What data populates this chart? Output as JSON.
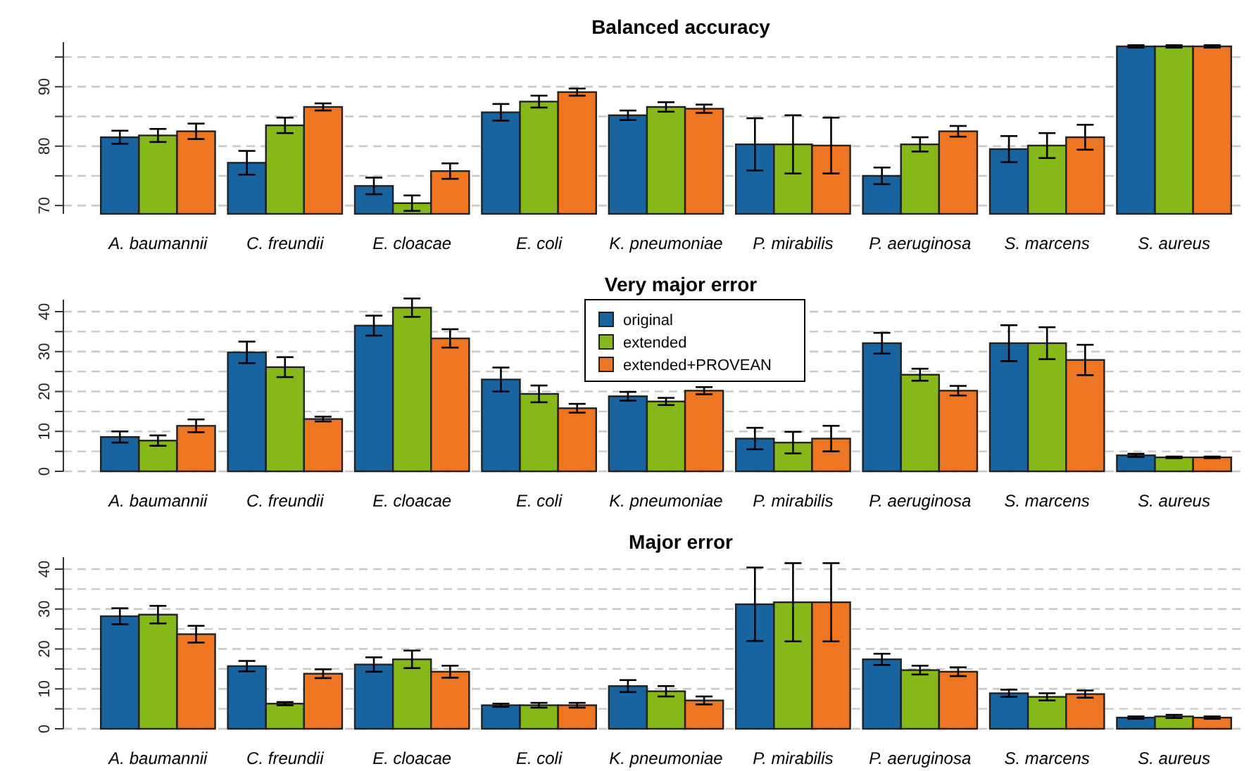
{
  "chart_data": [
    {
      "type": "bar",
      "title": "Balanced accuracy",
      "categories": [
        "A. baumannii",
        "C. freundii",
        "E. cloacae",
        "E. coli",
        "K. pneumoniae",
        "P. mirabilis",
        "P. aeruginosa",
        "S. marcens",
        "S. aureus"
      ],
      "series": [
        {
          "color": "#1764a0",
          "values": [
            81.5,
            77.2,
            73.3,
            85.7,
            85.2,
            80.3,
            75.0,
            79.5,
            96.8
          ],
          "errors": [
            1.1,
            2.0,
            1.4,
            1.4,
            0.8,
            4.4,
            1.4,
            2.2,
            0.2
          ]
        },
        {
          "color": "#86b81a",
          "values": [
            81.8,
            83.5,
            70.4,
            87.5,
            86.6,
            80.3,
            80.3,
            80.1,
            96.8
          ],
          "errors": [
            1.1,
            1.3,
            1.3,
            1.0,
            0.8,
            4.9,
            1.2,
            2.1,
            0.2
          ]
        },
        {
          "color": "#ee7623",
          "values": [
            82.5,
            86.6,
            75.8,
            89.1,
            86.3,
            80.1,
            82.5,
            81.5,
            96.8
          ],
          "errors": [
            1.3,
            0.6,
            1.3,
            0.6,
            0.7,
            4.7,
            0.9,
            2.1,
            0.2
          ]
        }
      ],
      "ylim": [
        68.6,
        97.5
      ],
      "yticks": [
        70,
        {
          "value": 75,
          "label": null
        },
        80,
        {
          "value": 85,
          "label": null
        },
        90,
        {
          "value": 95,
          "label": null
        }
      ],
      "grid": "y"
    },
    {
      "type": "bar",
      "title": "Very major error",
      "categories": [
        "A. baumannii",
        "C. freundii",
        "E. cloacae",
        "E. coli",
        "K. pneumoniae",
        "P. mirabilis",
        "P. aeruginosa",
        "S. marcens",
        "S. aureus"
      ],
      "series": [
        {
          "name": "original",
          "color": "#1764a0",
          "values": [
            8.6,
            29.8,
            36.5,
            23.0,
            18.8,
            8.2,
            32.1,
            32.1,
            4.0
          ],
          "errors": [
            1.4,
            2.7,
            2.5,
            3.0,
            1.1,
            2.7,
            2.6,
            4.5,
            0.4
          ]
        },
        {
          "name": "extended",
          "color": "#86b81a",
          "values": [
            7.7,
            26.1,
            41.0,
            19.4,
            17.5,
            7.2,
            24.2,
            32.1,
            3.5
          ],
          "errors": [
            1.3,
            2.5,
            2.3,
            2.1,
            0.9,
            2.7,
            1.5,
            4.0,
            0.2
          ]
        },
        {
          "name": "extended+PROVEAN",
          "color": "#ee7623",
          "values": [
            11.4,
            13.1,
            33.3,
            15.8,
            20.2,
            8.2,
            20.2,
            27.9,
            3.5
          ],
          "errors": [
            1.6,
            0.6,
            2.3,
            1.1,
            0.9,
            3.2,
            1.2,
            3.8,
            0.2
          ]
        }
      ],
      "ylim": [
        0,
        43
      ],
      "yticks": [
        0,
        {
          "value": 5,
          "label": null
        },
        10,
        {
          "value": 15,
          "label": null
        },
        20,
        {
          "value": 25,
          "label": null
        },
        30,
        {
          "value": 35,
          "label": null
        },
        40
      ],
      "grid": "y",
      "legend": "top"
    },
    {
      "type": "bar",
      "title": "Major error",
      "categories": [
        "A. baumannii",
        "C. freundii",
        "E. cloacae",
        "E. coli",
        "K. pneumoniae",
        "P. mirabilis",
        "P. aeruginosa",
        "S. marcens",
        "S. aureus"
      ],
      "series": [
        {
          "color": "#1764a0",
          "values": [
            28.2,
            15.7,
            16.1,
            5.9,
            10.7,
            31.2,
            17.4,
            8.9,
            2.8
          ],
          "errors": [
            2.0,
            1.3,
            1.8,
            0.4,
            1.5,
            9.2,
            1.4,
            0.9,
            0.3
          ]
        },
        {
          "color": "#86b81a",
          "values": [
            28.6,
            6.3,
            17.4,
            5.9,
            9.4,
            31.7,
            14.7,
            8.0,
            3.1
          ],
          "errors": [
            2.2,
            0.4,
            2.2,
            0.6,
            1.3,
            9.8,
            1.1,
            0.9,
            0.4
          ]
        },
        {
          "color": "#ee7623",
          "values": [
            23.7,
            13.8,
            14.3,
            5.9,
            7.1,
            31.7,
            14.3,
            8.7,
            2.8
          ],
          "errors": [
            2.1,
            1.1,
            1.5,
            0.6,
            1.0,
            9.8,
            1.1,
            0.9,
            0.3
          ]
        }
      ],
      "ylim": [
        0,
        43
      ],
      "yticks": [
        0,
        {
          "value": 5,
          "label": null
        },
        10,
        {
          "value": 15,
          "label": null
        },
        20,
        {
          "value": 25,
          "label": null
        },
        30,
        {
          "value": 35,
          "label": null
        },
        40
      ],
      "grid": "y"
    }
  ]
}
